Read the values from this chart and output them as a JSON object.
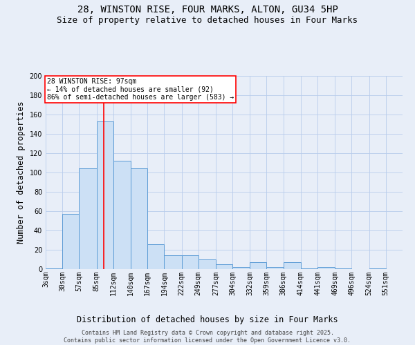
{
  "title_line1": "28, WINSTON RISE, FOUR MARKS, ALTON, GU34 5HP",
  "title_line2": "Size of property relative to detached houses in Four Marks",
  "xlabel": "Distribution of detached houses by size in Four Marks",
  "ylabel": "Number of detached properties",
  "bar_color": "#cce0f5",
  "bar_edge_color": "#5b9bd5",
  "grid_color": "#b8ccec",
  "background_color": "#e8eef8",
  "annotation_text": "28 WINSTON RISE: 97sqm\n← 14% of detached houses are smaller (92)\n86% of semi-detached houses are larger (583) →",
  "annotation_box_color": "white",
  "annotation_box_edge": "red",
  "vline_x": 97,
  "vline_color": "red",
  "bins": [
    3,
    30,
    57,
    85,
    112,
    140,
    167,
    194,
    222,
    249,
    277,
    304,
    332,
    359,
    386,
    414,
    441,
    469,
    496,
    524,
    551
  ],
  "counts": [
    1,
    57,
    104,
    153,
    112,
    104,
    26,
    14,
    14,
    10,
    5,
    2,
    7,
    2,
    7,
    1,
    2,
    1,
    0,
    1
  ],
  "ylim": [
    0,
    200
  ],
  "yticks": [
    0,
    20,
    40,
    60,
    80,
    100,
    120,
    140,
    160,
    180,
    200
  ],
  "bin_labels": [
    "3sqm",
    "30sqm",
    "57sqm",
    "85sqm",
    "112sqm",
    "140sqm",
    "167sqm",
    "194sqm",
    "222sqm",
    "249sqm",
    "277sqm",
    "304sqm",
    "332sqm",
    "359sqm",
    "386sqm",
    "414sqm",
    "441sqm",
    "469sqm",
    "496sqm",
    "524sqm",
    "551sqm"
  ],
  "footnote": "Contains HM Land Registry data © Crown copyright and database right 2025.\nContains public sector information licensed under the Open Government Licence v3.0.",
  "title_fontsize": 10,
  "subtitle_fontsize": 9,
  "tick_fontsize": 7,
  "label_fontsize": 8.5
}
